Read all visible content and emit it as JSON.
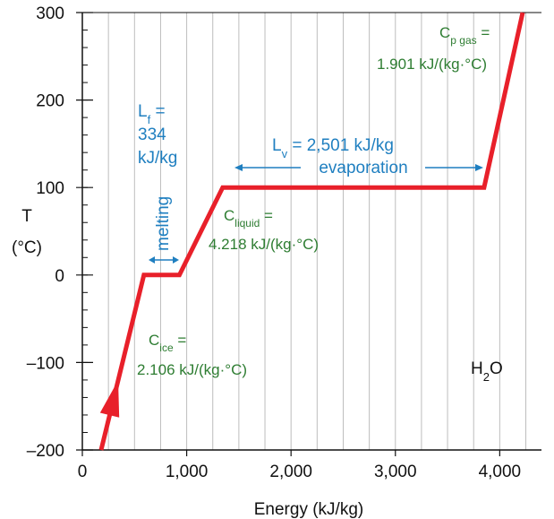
{
  "chart_data": {
    "type": "line",
    "title": "",
    "xlabel": "Energy  (kJ/kg)",
    "ylabel": "T",
    "ylabel_unit": "(°C)",
    "xlim": [
      0,
      4400
    ],
    "ylim": [
      -200,
      300
    ],
    "x_ticks": [
      0,
      1000,
      2000,
      3000,
      4000
    ],
    "x_tick_labels": [
      "0",
      "1,000",
      "2,000",
      "3,000",
      "4,000"
    ],
    "y_ticks": [
      -200,
      -100,
      0,
      100,
      200,
      300
    ],
    "y_tick_labels": [
      "–200",
      "–100",
      "0",
      "100",
      "200",
      "300"
    ],
    "grid": "vertical",
    "series": [
      {
        "color": "#e8202a",
        "x": [
          180,
          590,
          930,
          1345,
          3850,
          4220
        ],
        "y": [
          -200,
          0,
          0,
          100,
          100,
          300
        ]
      }
    ],
    "annotations": {
      "lf": {
        "base": "L",
        "sub": "f",
        "suffix": " =",
        "line2": "334",
        "line3": "kJ/kg"
      },
      "melting": "melting",
      "lv": {
        "base": "L",
        "sub": "v",
        "suffix": " =  2,501 kJ/kg"
      },
      "evaporation": "evaporation",
      "c_liquid": {
        "base": "C",
        "sub": "liquid",
        "suffix": " =",
        "line2": "4.218 kJ/(kg·°C)"
      },
      "c_ice": {
        "base": "C",
        "sub": "ice",
        "suffix": " =",
        "line2": "2.106 kJ/(kg·°C)"
      },
      "c_gas": {
        "base": "C",
        "sub": "p gas",
        "suffix": " =",
        "line2": "1.901 kJ/(kg·°C)"
      },
      "h2o": {
        "base": "H",
        "sub": "2",
        "suffix": "O"
      }
    },
    "colors": {
      "curve": "#e8202a",
      "latent": "#1f7fc0",
      "specific_heat": "#2e7d32",
      "grid": "#bdbdbd"
    }
  }
}
